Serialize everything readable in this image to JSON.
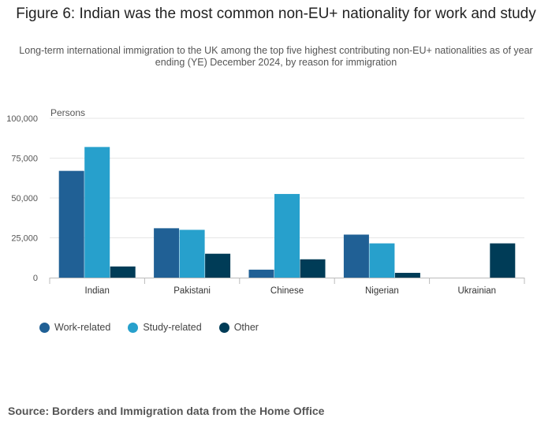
{
  "title": "Figure 6: Indian was the most common non-EU+ nationality for work and study",
  "subtitle": "Long-term international immigration to the UK among the top five highest contributing non-EU+ nationalities as of year ending (YE) December 2024, by reason for immigration",
  "source": "Source: Borders and Immigration data from the Home Office",
  "chart_data": {
    "type": "bar",
    "ylabel": "Persons",
    "ylim": [
      0,
      100000
    ],
    "yticks": [
      "0",
      "25,000",
      "50,000",
      "75,000",
      "100,000"
    ],
    "ytick_values": [
      0,
      25000,
      50000,
      75000,
      100000
    ],
    "grid": true,
    "legend_position": "bottom-left",
    "categories": [
      "Indian",
      "Pakistani",
      "Chinese",
      "Nigerian",
      "Ukrainian"
    ],
    "series": [
      {
        "name": "Work-related",
        "color": "#206095",
        "values": [
          67000,
          31000,
          5000,
          27000,
          0
        ]
      },
      {
        "name": "Study-related",
        "color": "#27a0cc",
        "values": [
          82000,
          30000,
          52500,
          21500,
          0
        ]
      },
      {
        "name": "Other",
        "color": "#003c57",
        "values": [
          7000,
          15000,
          11500,
          3000,
          21500
        ]
      }
    ]
  }
}
